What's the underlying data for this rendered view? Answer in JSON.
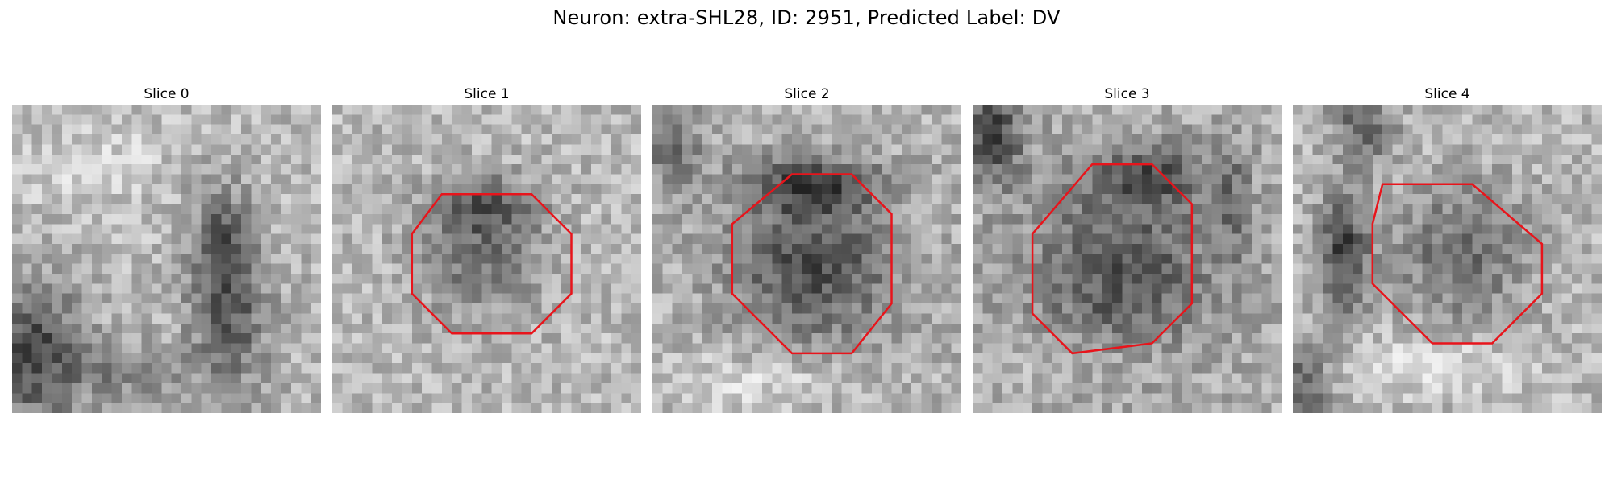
{
  "figure": {
    "title": "Neuron: extra-SHL28, ID: 2951, Predicted Label: DV",
    "outline_color": "#e8141b"
  },
  "panels": [
    {
      "title": "Slice 0"
    },
    {
      "title": "Slice 1"
    },
    {
      "title": "Slice 2"
    },
    {
      "title": "Slice 3"
    },
    {
      "title": "Slice 4"
    }
  ]
}
